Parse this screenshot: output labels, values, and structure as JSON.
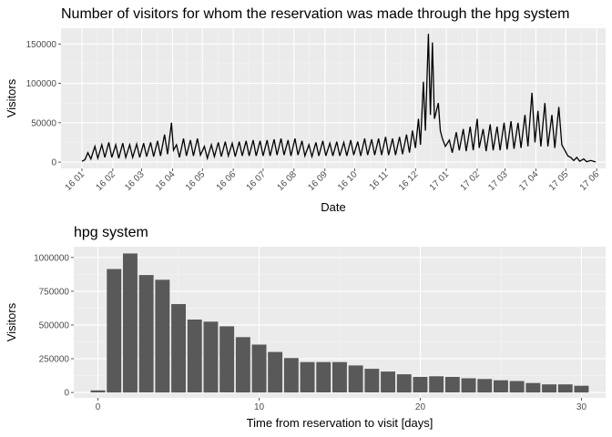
{
  "chart_data": [
    {
      "type": "line",
      "title": "Number of visitors for whom the reservation was made through the hpg system",
      "xlabel": "Date",
      "ylabel": "Visitors",
      "x_tick_labels": [
        "16 01",
        "16 02",
        "16 03",
        "16 04",
        "16 05",
        "16 06",
        "16 07",
        "16 08",
        "16 09",
        "16 10",
        "16 11",
        "16 12",
        "17 01",
        "17 02",
        "17 03",
        "17 04",
        "17 05",
        "17 06"
      ],
      "y_tick_labels": [
        "0",
        "50000",
        "100000",
        "150000"
      ],
      "y_ticks": [
        0,
        50000,
        100000,
        150000
      ],
      "ylim": [
        -8000,
        170000
      ],
      "grid": true,
      "series": [
        {
          "values": [
            {
              "x": "2016-01-01",
              "y": 1000
            },
            {
              "x": "2016-01-04",
              "y": 3000
            },
            {
              "x": "2016-01-07",
              "y": 12000
            },
            {
              "x": "2016-01-10",
              "y": 4000
            },
            {
              "x": "2016-01-14",
              "y": 20000
            },
            {
              "x": "2016-01-17",
              "y": 5000
            },
            {
              "x": "2016-01-21",
              "y": 22000
            },
            {
              "x": "2016-01-24",
              "y": 6000
            },
            {
              "x": "2016-01-28",
              "y": 25000
            },
            {
              "x": "2016-01-31",
              "y": 6000
            },
            {
              "x": "2016-02-04",
              "y": 22000
            },
            {
              "x": "2016-02-07",
              "y": 5000
            },
            {
              "x": "2016-02-11",
              "y": 24000
            },
            {
              "x": "2016-02-14",
              "y": 6000
            },
            {
              "x": "2016-02-18",
              "y": 22000
            },
            {
              "x": "2016-02-21",
              "y": 6000
            },
            {
              "x": "2016-02-25",
              "y": 23000
            },
            {
              "x": "2016-02-28",
              "y": 6000
            },
            {
              "x": "2016-03-03",
              "y": 24000
            },
            {
              "x": "2016-03-06",
              "y": 7000
            },
            {
              "x": "2016-03-10",
              "y": 25000
            },
            {
              "x": "2016-03-13",
              "y": 7000
            },
            {
              "x": "2016-03-17",
              "y": 27000
            },
            {
              "x": "2016-03-20",
              "y": 8000
            },
            {
              "x": "2016-03-24",
              "y": 35000
            },
            {
              "x": "2016-03-27",
              "y": 10000
            },
            {
              "x": "2016-03-31",
              "y": 50000
            },
            {
              "x": "2016-04-02",
              "y": 15000
            },
            {
              "x": "2016-04-05",
              "y": 22000
            },
            {
              "x": "2016-04-08",
              "y": 6000
            },
            {
              "x": "2016-04-12",
              "y": 30000
            },
            {
              "x": "2016-04-15",
              "y": 8000
            },
            {
              "x": "2016-04-19",
              "y": 28000
            },
            {
              "x": "2016-04-22",
              "y": 8000
            },
            {
              "x": "2016-04-26",
              "y": 30000
            },
            {
              "x": "2016-04-29",
              "y": 9000
            },
            {
              "x": "2016-05-03",
              "y": 20000
            },
            {
              "x": "2016-05-06",
              "y": 5000
            },
            {
              "x": "2016-05-10",
              "y": 22000
            },
            {
              "x": "2016-05-13",
              "y": 7000
            },
            {
              "x": "2016-05-17",
              "y": 25000
            },
            {
              "x": "2016-05-20",
              "y": 7000
            },
            {
              "x": "2016-05-24",
              "y": 26000
            },
            {
              "x": "2016-05-27",
              "y": 8000
            },
            {
              "x": "2016-05-31",
              "y": 24000
            },
            {
              "x": "2016-06-03",
              "y": 7000
            },
            {
              "x": "2016-06-07",
              "y": 26000
            },
            {
              "x": "2016-06-10",
              "y": 8000
            },
            {
              "x": "2016-06-14",
              "y": 27000
            },
            {
              "x": "2016-06-17",
              "y": 8000
            },
            {
              "x": "2016-06-21",
              "y": 28000
            },
            {
              "x": "2016-06-24",
              "y": 8000
            },
            {
              "x": "2016-06-28",
              "y": 27000
            },
            {
              "x": "2016-07-01",
              "y": 8000
            },
            {
              "x": "2016-07-05",
              "y": 28000
            },
            {
              "x": "2016-07-08",
              "y": 8000
            },
            {
              "x": "2016-07-12",
              "y": 29000
            },
            {
              "x": "2016-07-15",
              "y": 9000
            },
            {
              "x": "2016-07-19",
              "y": 30000
            },
            {
              "x": "2016-07-22",
              "y": 9000
            },
            {
              "x": "2016-07-26",
              "y": 28000
            },
            {
              "x": "2016-07-29",
              "y": 8000
            },
            {
              "x": "2016-08-02",
              "y": 30000
            },
            {
              "x": "2016-08-05",
              "y": 9000
            },
            {
              "x": "2016-08-09",
              "y": 27000
            },
            {
              "x": "2016-08-12",
              "y": 8000
            },
            {
              "x": "2016-08-16",
              "y": 22000
            },
            {
              "x": "2016-08-19",
              "y": 7000
            },
            {
              "x": "2016-08-23",
              "y": 25000
            },
            {
              "x": "2016-08-26",
              "y": 8000
            },
            {
              "x": "2016-08-30",
              "y": 27000
            },
            {
              "x": "2016-09-02",
              "y": 8000
            },
            {
              "x": "2016-09-06",
              "y": 24000
            },
            {
              "x": "2016-09-09",
              "y": 8000
            },
            {
              "x": "2016-09-13",
              "y": 26000
            },
            {
              "x": "2016-09-16",
              "y": 8000
            },
            {
              "x": "2016-09-20",
              "y": 25000
            },
            {
              "x": "2016-09-23",
              "y": 8000
            },
            {
              "x": "2016-09-27",
              "y": 28000
            },
            {
              "x": "2016-09-30",
              "y": 9000
            },
            {
              "x": "2016-10-04",
              "y": 26000
            },
            {
              "x": "2016-10-07",
              "y": 8000
            },
            {
              "x": "2016-10-11",
              "y": 30000
            },
            {
              "x": "2016-10-14",
              "y": 9000
            },
            {
              "x": "2016-10-18",
              "y": 29000
            },
            {
              "x": "2016-10-21",
              "y": 9000
            },
            {
              "x": "2016-10-25",
              "y": 30000
            },
            {
              "x": "2016-10-28",
              "y": 9000
            },
            {
              "x": "2016-11-01",
              "y": 32000
            },
            {
              "x": "2016-11-04",
              "y": 9000
            },
            {
              "x": "2016-11-08",
              "y": 30000
            },
            {
              "x": "2016-11-11",
              "y": 9000
            },
            {
              "x": "2016-11-15",
              "y": 32000
            },
            {
              "x": "2016-11-18",
              "y": 10000
            },
            {
              "x": "2016-11-22",
              "y": 35000
            },
            {
              "x": "2016-11-25",
              "y": 12000
            },
            {
              "x": "2016-11-28",
              "y": 40000
            },
            {
              "x": "2016-12-01",
              "y": 18000
            },
            {
              "x": "2016-12-04",
              "y": 55000
            },
            {
              "x": "2016-12-06",
              "y": 22000
            },
            {
              "x": "2016-12-09",
              "y": 102000
            },
            {
              "x": "2016-12-11",
              "y": 40000
            },
            {
              "x": "2016-12-14",
              "y": 163000
            },
            {
              "x": "2016-12-16",
              "y": 60000
            },
            {
              "x": "2016-12-18",
              "y": 152000
            },
            {
              "x": "2016-12-20",
              "y": 55000
            },
            {
              "x": "2016-12-24",
              "y": 75000
            },
            {
              "x": "2016-12-26",
              "y": 40000
            },
            {
              "x": "2016-12-28",
              "y": 30000
            },
            {
              "x": "2016-12-31",
              "y": 20000
            },
            {
              "x": "2017-01-04",
              "y": 28000
            },
            {
              "x": "2017-01-07",
              "y": 12000
            },
            {
              "x": "2017-01-11",
              "y": 38000
            },
            {
              "x": "2017-01-14",
              "y": 15000
            },
            {
              "x": "2017-01-18",
              "y": 42000
            },
            {
              "x": "2017-01-21",
              "y": 14000
            },
            {
              "x": "2017-01-25",
              "y": 45000
            },
            {
              "x": "2017-01-28",
              "y": 15000
            },
            {
              "x": "2017-02-01",
              "y": 55000
            },
            {
              "x": "2017-02-03",
              "y": 18000
            },
            {
              "x": "2017-02-07",
              "y": 42000
            },
            {
              "x": "2017-02-10",
              "y": 14000
            },
            {
              "x": "2017-02-14",
              "y": 48000
            },
            {
              "x": "2017-02-17",
              "y": 15000
            },
            {
              "x": "2017-02-21",
              "y": 45000
            },
            {
              "x": "2017-02-24",
              "y": 15000
            },
            {
              "x": "2017-02-28",
              "y": 50000
            },
            {
              "x": "2017-03-03",
              "y": 16000
            },
            {
              "x": "2017-03-07",
              "y": 52000
            },
            {
              "x": "2017-03-10",
              "y": 17000
            },
            {
              "x": "2017-03-14",
              "y": 50000
            },
            {
              "x": "2017-03-17",
              "y": 18000
            },
            {
              "x": "2017-03-21",
              "y": 60000
            },
            {
              "x": "2017-03-24",
              "y": 20000
            },
            {
              "x": "2017-03-28",
              "y": 88000
            },
            {
              "x": "2017-03-31",
              "y": 25000
            },
            {
              "x": "2017-04-03",
              "y": 65000
            },
            {
              "x": "2017-04-06",
              "y": 20000
            },
            {
              "x": "2017-04-10",
              "y": 75000
            },
            {
              "x": "2017-04-13",
              "y": 20000
            },
            {
              "x": "2017-04-17",
              "y": 60000
            },
            {
              "x": "2017-04-20",
              "y": 18000
            },
            {
              "x": "2017-04-24",
              "y": 70000
            },
            {
              "x": "2017-04-27",
              "y": 22000
            },
            {
              "x": "2017-04-30",
              "y": 15000
            },
            {
              "x": "2017-05-03",
              "y": 8000
            },
            {
              "x": "2017-05-06",
              "y": 6000
            },
            {
              "x": "2017-05-09",
              "y": 2000
            },
            {
              "x": "2017-05-12",
              "y": 6000
            },
            {
              "x": "2017-05-15",
              "y": 1000
            },
            {
              "x": "2017-05-19",
              "y": 4000
            },
            {
              "x": "2017-05-22",
              "y": 500
            },
            {
              "x": "2017-05-26",
              "y": 2000
            },
            {
              "x": "2017-05-31",
              "y": 200
            }
          ]
        }
      ]
    },
    {
      "type": "bar",
      "title": "hpg system",
      "xlabel": "Time from reservation to visit [days]",
      "ylabel": "Visitors",
      "x": [
        0,
        1,
        2,
        3,
        4,
        5,
        6,
        7,
        8,
        9,
        10,
        11,
        12,
        13,
        14,
        15,
        16,
        17,
        18,
        19,
        20,
        21,
        22,
        23,
        24,
        25,
        26,
        27,
        28,
        29,
        30
      ],
      "values": [
        15000,
        915000,
        1030000,
        870000,
        835000,
        655000,
        540000,
        525000,
        490000,
        410000,
        355000,
        300000,
        255000,
        225000,
        225000,
        225000,
        200000,
        175000,
        155000,
        135000,
        115000,
        120000,
        115000,
        105000,
        100000,
        90000,
        85000,
        70000,
        60000,
        60000,
        50000
      ],
      "x_tick_labels": [
        "0",
        "10",
        "20",
        "30"
      ],
      "x_ticks": [
        0,
        10,
        20,
        30
      ],
      "y_tick_labels": [
        "0",
        "250000",
        "500000",
        "750000",
        "1000000"
      ],
      "y_ticks": [
        0,
        250000,
        500000,
        750000,
        1000000
      ],
      "xlim": [
        -1.5,
        31.5
      ],
      "ylim": [
        -40000,
        1080000
      ],
      "bar_color": "#595959",
      "grid": true
    }
  ],
  "colors": {
    "panel_bg": "#ebebeb",
    "grid_major": "#ffffff",
    "line": "#000000"
  }
}
